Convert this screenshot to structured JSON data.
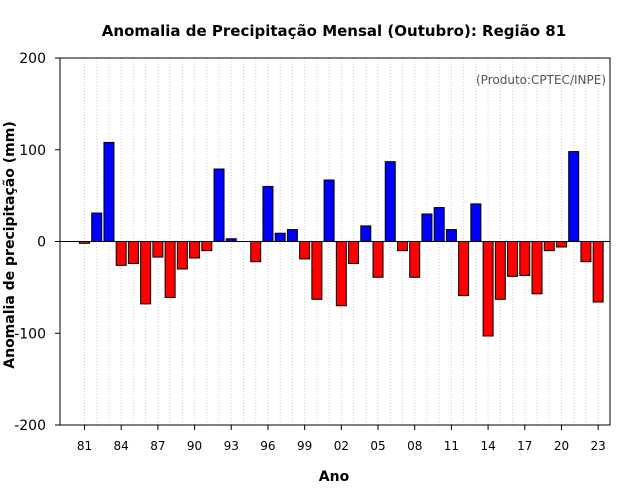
{
  "chart_data": {
    "type": "bar",
    "title": "Anomalia de Precipitação Mensal (Outubro): Região 81",
    "annotation": "(Produto:CPTEC/INPE)",
    "xlabel": "Ano",
    "ylabel": "Anomalia de precipitação (mm)",
    "ylim": [
      -200,
      200
    ],
    "yticks": [
      -200,
      -100,
      0,
      100,
      200
    ],
    "grid": "vertical dotted",
    "x_tick_labels": [
      "81",
      "84",
      "87",
      "90",
      "93",
      "96",
      "99",
      "02",
      "05",
      "08",
      "11",
      "14",
      "17",
      "20",
      "23"
    ],
    "x_tick_years": [
      1981,
      1984,
      1987,
      1990,
      1993,
      1996,
      1999,
      2002,
      2005,
      2008,
      2011,
      2014,
      2017,
      2020,
      2023
    ],
    "positive_color": "#0000ff",
    "negative_color": "#ff0000",
    "years": [
      1981,
      1982,
      1983,
      1984,
      1985,
      1986,
      1987,
      1988,
      1989,
      1990,
      1991,
      1992,
      1993,
      1994,
      1995,
      1996,
      1997,
      1998,
      1999,
      2000,
      2001,
      2002,
      2003,
      2004,
      2005,
      2006,
      2007,
      2008,
      2009,
      2010,
      2011,
      2012,
      2013,
      2014,
      2015,
      2016,
      2017,
      2018,
      2019,
      2020,
      2021,
      2022,
      2023
    ],
    "values": [
      -2,
      31,
      108,
      -26,
      -24,
      -68,
      -17,
      -61,
      -30,
      -18,
      -10,
      79,
      3,
      0,
      -22,
      60,
      9,
      13,
      -19,
      -63,
      67,
      -70,
      -24,
      17,
      -39,
      87,
      -10,
      -39,
      30,
      37,
      13,
      -59,
      41,
      -103,
      -63,
      -38,
      -37,
      -57,
      -10,
      -6,
      98,
      -22,
      -66
    ]
  }
}
